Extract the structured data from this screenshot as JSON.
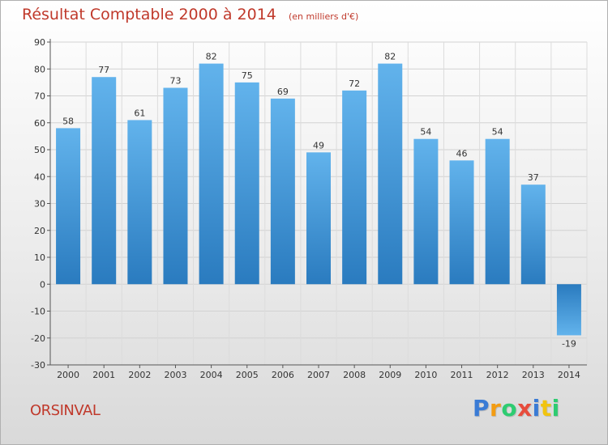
{
  "title": "Résultat Comptable 2000 à 2014",
  "unit": "(en milliers d'€)",
  "city": "ORSINVAL",
  "brand": {
    "text": "Proxiti",
    "letters": [
      "P",
      "r",
      "o",
      "x",
      "i",
      "t",
      "i"
    ],
    "colors": [
      "#3a7bd5",
      "#f39c12",
      "#2ecc71",
      "#e74c3c",
      "#3a7bd5",
      "#f1c40f",
      "#2ecc71"
    ]
  },
  "colors": {
    "bar_dark": "#2a7cc0",
    "bar_light": "#5fb0ea",
    "title": "#c0392b",
    "grid": "#cfcfcf"
  },
  "chart_data": {
    "type": "bar",
    "title": "Résultat Comptable 2000 à 2014",
    "xlabel": "",
    "ylabel": "",
    "ylim": [
      -30,
      90
    ],
    "yticks": [
      -30,
      -20,
      -10,
      0,
      10,
      20,
      30,
      40,
      50,
      60,
      70,
      80,
      90
    ],
    "grid": true,
    "categories": [
      "2000",
      "2001",
      "2002",
      "2003",
      "2004",
      "2005",
      "2006",
      "2007",
      "2008",
      "2009",
      "2010",
      "2011",
      "2012",
      "2013",
      "2014"
    ],
    "values": [
      58,
      77,
      61,
      73,
      82,
      75,
      69,
      49,
      72,
      82,
      54,
      46,
      54,
      37,
      -19
    ],
    "labels": [
      "58",
      "77",
      "61",
      "73",
      "82",
      "75",
      "69",
      "49",
      "72",
      "82",
      "54",
      "46",
      "54",
      "37",
      "-19"
    ]
  }
}
